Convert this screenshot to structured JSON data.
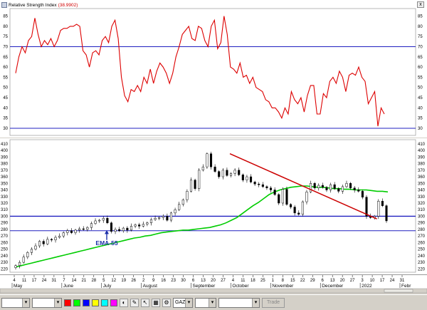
{
  "rsi_panel": {
    "title": "Relative Strength Index",
    "value_label": "(38.9902)",
    "close_glyph": "x",
    "y_ticks": [
      85,
      80,
      75,
      70,
      65,
      60,
      55,
      50,
      45,
      40,
      35,
      30
    ],
    "y_range": [
      26.5,
      88
    ],
    "levels": [
      70,
      30
    ],
    "colors": {
      "line": "#dd0000",
      "level": "#2020c0"
    }
  },
  "price_panel": {
    "y_ticks": [
      410,
      400,
      390,
      380,
      370,
      360,
      350,
      340,
      330,
      320,
      310,
      300,
      290,
      280,
      270,
      260,
      250,
      240,
      230,
      220
    ],
    "y_range": [
      215,
      412
    ],
    "levels": [
      300,
      278
    ],
    "ema_label": "EMA-55",
    "colors": {
      "candle": "#000000",
      "ema": "#00cc00",
      "trend": "#cc0000",
      "level": "#2020c0",
      "ema_label": "#1a2ea8"
    }
  },
  "day_ticks": [
    "4",
    "11",
    "17",
    "24",
    "31",
    "7",
    "14",
    "21",
    "28",
    "5",
    "12",
    "19",
    "26",
    "2",
    "9",
    "16",
    "23",
    "30",
    "6",
    "13",
    "20",
    "27",
    "4",
    "11",
    "18",
    "25",
    "1",
    "8",
    "15",
    "22",
    "29",
    "6",
    "13",
    "20",
    "27",
    "3",
    "10",
    "17",
    "24",
    "31"
  ],
  "months": [
    "May",
    "June",
    "July",
    "August",
    "September",
    "October",
    "November",
    "December",
    "2022",
    "Febr"
  ],
  "chart_data": {
    "type": "candlestick",
    "x_range": [
      "2021-05-04",
      "2022-02-04"
    ],
    "rsi": {
      "name": "Relative Strength Index",
      "current": 38.9902,
      "levels": [
        70,
        30
      ],
      "values": [
        57,
        65,
        70,
        67,
        73,
        75,
        84,
        76,
        70,
        73,
        71,
        74,
        70,
        73,
        78,
        79,
        79,
        80,
        80,
        81,
        80,
        68,
        66,
        60,
        67,
        68,
        66,
        73,
        75,
        72,
        80,
        83,
        74,
        55,
        46,
        43,
        49,
        48,
        51,
        48,
        55,
        52,
        59,
        52,
        58,
        62,
        60,
        57,
        52,
        57,
        65,
        70,
        76,
        78,
        80,
        74,
        73,
        80,
        79,
        73,
        70,
        80,
        83,
        69,
        72,
        85,
        76,
        60,
        59,
        57,
        62,
        55,
        56,
        52,
        55,
        50,
        49,
        48,
        44,
        43,
        40,
        40,
        38,
        35,
        40,
        37,
        48,
        44,
        42,
        45,
        38,
        46,
        51,
        51,
        37,
        37,
        47,
        45,
        53,
        55,
        52,
        58,
        55,
        48,
        56,
        57,
        56,
        60,
        55,
        53,
        42,
        45,
        48,
        31,
        40,
        37
      ],
      "levels_style": "horizontal lines"
    },
    "price": {
      "y_range": [
        215,
        412
      ],
      "horizontal_levels": [
        300,
        278
      ],
      "trendline": {
        "from": {
          "date": "2021-10-04",
          "value": 395
        },
        "to": {
          "date": "2022-01-17",
          "value": 296
        }
      },
      "ema_label": "EMA-55",
      "ema": [
        223,
        225,
        227,
        229,
        231,
        233,
        235,
        237,
        239,
        241,
        243,
        245,
        247,
        249,
        251,
        253,
        255,
        257,
        259,
        261,
        263,
        265,
        267,
        268,
        270,
        271,
        273,
        275,
        276,
        277,
        278,
        279,
        279,
        280,
        281,
        282,
        283,
        285,
        287,
        290,
        294,
        298,
        304,
        310,
        316,
        321,
        327,
        333,
        337,
        340,
        342,
        344,
        345,
        346,
        346,
        345,
        344,
        344,
        343,
        342,
        342,
        341,
        341,
        340,
        340,
        340,
        339,
        338,
        338,
        337
      ],
      "close": [
        225,
        230,
        238,
        245,
        250,
        255,
        262,
        258,
        265,
        264,
        268,
        270,
        275,
        278,
        275,
        279,
        281,
        280,
        283,
        289,
        293,
        294,
        297,
        290,
        277,
        280,
        278,
        282,
        279,
        285,
        287,
        285,
        288,
        290,
        295,
        297,
        298,
        300,
        294,
        305,
        310,
        318,
        325,
        338,
        355,
        342,
        370,
        375,
        395,
        375,
        368,
        360,
        370,
        362,
        365,
        370,
        363,
        355,
        360,
        352,
        349,
        348,
        345,
        343,
        340,
        333,
        320,
        341,
        318,
        314,
        305,
        303,
        322,
        337,
        350,
        343,
        347,
        344,
        340,
        348,
        342,
        338,
        345,
        350,
        343,
        340,
        338,
        329,
        300,
        298,
        300,
        323,
        316,
        293
      ]
    }
  }
}
